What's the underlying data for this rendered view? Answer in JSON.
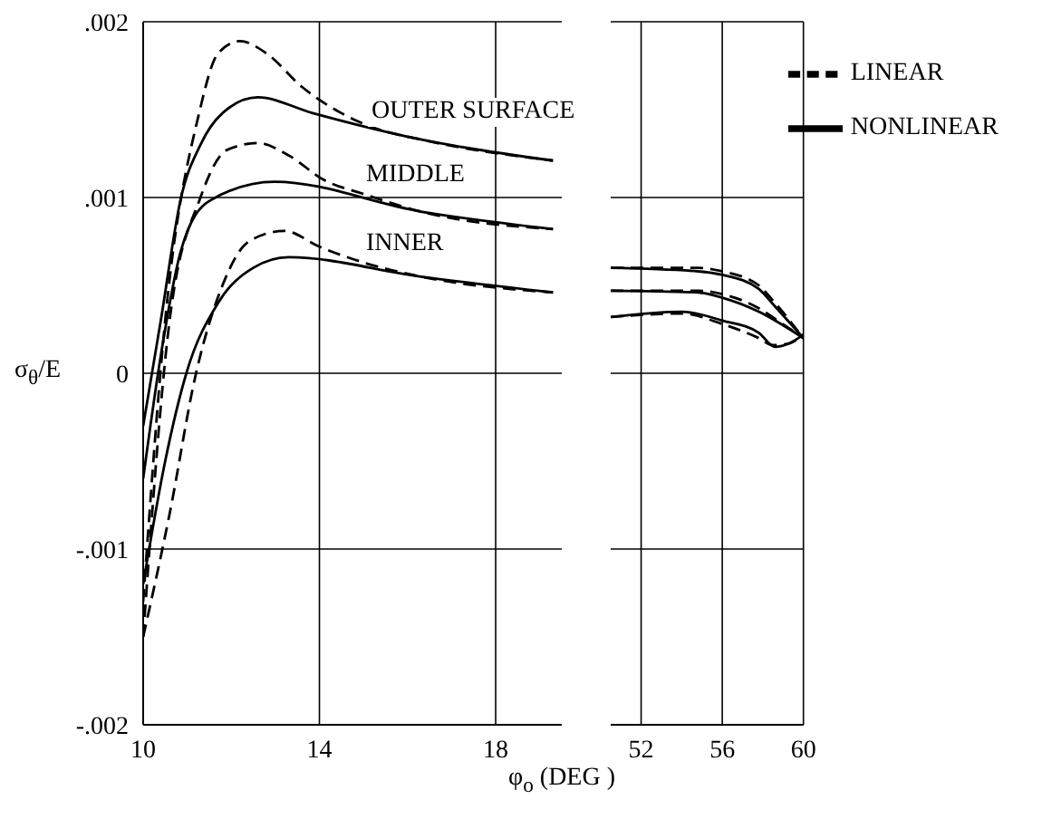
{
  "chart_data": [
    {
      "type": "line",
      "xlabel": "φ$_{o}$ (DEG )",
      "ylabel": "σ$_{θ}$/E",
      "xlim": [
        10,
        19.5
      ],
      "xticks": [
        10,
        14,
        18
      ],
      "ylim": [
        -0.002,
        0.002
      ],
      "yticks": [
        {
          "value": -0.002,
          "label": "-.002"
        },
        {
          "value": -0.001,
          "label": "-.001"
        },
        0,
        {
          "value": 0.001,
          "label": ".001"
        },
        {
          "value": 0.002,
          "label": ".002"
        }
      ],
      "grid": true,
      "marker": "none",
      "annotations": [
        "OUTER SURFACE",
        "MIDDLE",
        "INNER"
      ],
      "series": [
        {
          "color": "#000000",
          "line_style": "dashed",
          "x": [
            10,
            10.5,
            11.27,
            11.7,
            12.2,
            12.8,
            13.6,
            14.5,
            15.2,
            16.3,
            19.3
          ],
          "values": [
            -0.0013,
            0.0003,
            0.00148,
            0.00182,
            0.00189,
            0.00182,
            0.00163,
            0.00148,
            0.0014,
            0.00133,
            0.00121
          ]
        },
        {
          "color": "#000000",
          "line_style": "solid",
          "x": [
            10,
            10.4,
            10.86,
            11.3,
            11.8,
            12.6,
            13.85,
            16.3,
            19.3
          ],
          "values": [
            -0.0003,
            0.0003,
            0.001,
            0.0013,
            0.00148,
            0.00157,
            0.00148,
            0.00133,
            0.00121
          ]
        },
        {
          "color": "#000000",
          "line_style": "dashed",
          "x": [
            10,
            10.6,
            11.3,
            11.9,
            12.6,
            13.3,
            14.1,
            15,
            16.3,
            19.3
          ],
          "values": [
            -0.0015,
            0.0003,
            0.001,
            0.00127,
            0.00131,
            0.00124,
            0.0011,
            0.00102,
            0.00092,
            0.00082
          ]
        },
        {
          "color": "#000000",
          "line_style": "solid",
          "x": [
            10,
            10.4,
            10.86,
            11.5,
            12.98,
            16.3,
            19.3
          ],
          "values": [
            -0.0006,
            0.0001,
            0.0007,
            0.00098,
            0.00109,
            0.00092,
            0.00082
          ]
        },
        {
          "color": "#000000",
          "line_style": "dashed",
          "x": [
            10,
            10.6,
            11.2,
            11.8,
            12.4,
            13.2,
            14,
            15,
            16.3,
            19.3
          ],
          "values": [
            -0.0015,
            -0.0008,
            0,
            0.0005,
            0.00075,
            0.00081,
            0.00072,
            0.00063,
            0.00055,
            0.00046
          ]
        },
        {
          "color": "#000000",
          "line_style": "solid",
          "x": [
            10,
            10.5,
            10.98,
            11.7,
            12.5,
            13.3,
            16.3,
            19.3
          ],
          "values": [
            -0.0012,
            -0.0005,
            0,
            0.0004,
            0.0006,
            0.00066,
            0.00055,
            0.00046
          ]
        }
      ]
    },
    {
      "type": "line",
      "xlim": [
        50.5,
        60
      ],
      "xticks": [
        52,
        56,
        60
      ],
      "ylim": [
        -0.002,
        0.002
      ],
      "yticks": [
        -0.002,
        -0.001,
        0,
        0.001,
        0.002
      ],
      "grid": true,
      "marker": "none",
      "tick_labels": "x",
      "legend": "top right",
      "series": [
        {
          "name": "LINEAR",
          "color": "#000000",
          "line_style": "dashed",
          "x": [
            50.5,
            54.8,
            56,
            57.8,
            58.6,
            60
          ],
          "values": [
            0.0006,
            0.0006,
            0.00058,
            0.0005,
            0.0004,
            0.0002
          ]
        },
        {
          "name": "NONLINEAR",
          "color": "#000000",
          "line_style": "solid",
          "x": [
            50.5,
            54.8,
            56,
            57.8,
            58.6,
            60
          ],
          "values": [
            0.0006,
            0.00058,
            0.00056,
            0.00048,
            0.00038,
            0.0002
          ]
        },
        {
          "color": "#000000",
          "line_style": "dashed",
          "x": [
            50.5,
            54.8,
            56,
            57.8,
            58.6,
            60
          ],
          "values": [
            0.00047,
            0.00047,
            0.00045,
            0.00037,
            0.00031,
            0.0002
          ]
        },
        {
          "color": "#000000",
          "line_style": "solid",
          "x": [
            50.5,
            54.8,
            56,
            57.8,
            58.6,
            60
          ],
          "values": [
            0.00047,
            0.00046,
            0.00043,
            0.00035,
            0.0003,
            0.0002
          ]
        },
        {
          "color": "#000000",
          "line_style": "dashed",
          "x": [
            50.5,
            54,
            56,
            57.8,
            58.5,
            59.3,
            60
          ],
          "values": [
            0.00032,
            0.00034,
            0.00028,
            0.0002,
            0.00016,
            0.00017,
            0.00022
          ]
        },
        {
          "color": "#000000",
          "line_style": "solid",
          "x": [
            50.5,
            54,
            56,
            57.8,
            58.6,
            59.3,
            60
          ],
          "values": [
            0.00032,
            0.00035,
            0.0003,
            0.00023,
            0.00015,
            0.00017,
            0.00022
          ]
        }
      ]
    }
  ]
}
